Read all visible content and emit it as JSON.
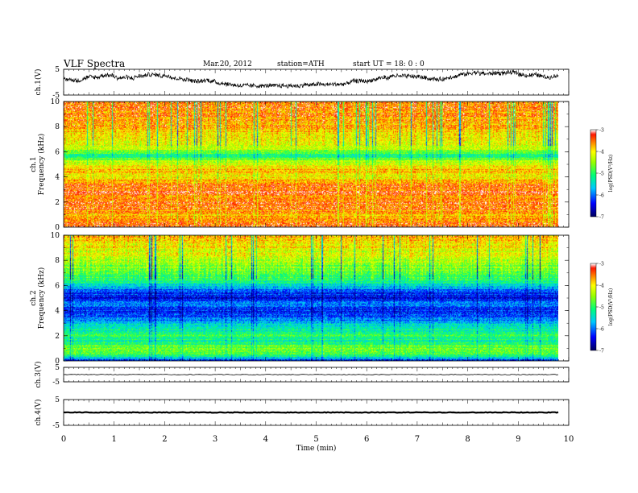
{
  "header": {
    "title": "VLF  Spectra",
    "date": "Mar.20, 2012",
    "station": "station=ATH",
    "start": "start  UT  =    18: 0  : 0"
  },
  "chart_data": [
    {
      "type": "line",
      "ylabel": "ch.1(V)",
      "ylim": [
        -5,
        5
      ],
      "y_ticks": [
        "5",
        "-5"
      ],
      "description_values": "noisy waveform around -1 to 3 V"
    },
    {
      "type": "heatmap",
      "ylabel": "ch.1\nFrequency  (kHz)",
      "ylabel_lines": [
        "ch.1",
        "Frequency  (kHz)"
      ],
      "ylim": [
        0,
        10
      ],
      "y_ticks": [
        "0",
        "2",
        "4",
        "6",
        "8",
        "10"
      ],
      "colorbar": {
        "label": "log(PSD(V²/Hz)",
        "ticks": [
          "-3",
          "-4",
          "-5",
          "-6",
          "-7"
        ],
        "range": [
          -7,
          -3
        ]
      },
      "intensity_profile_khz": [
        [
          0.0,
          -3.4
        ],
        [
          0.3,
          -3.3
        ],
        [
          0.8,
          -3.8
        ],
        [
          1.2,
          -3.6
        ],
        [
          1.8,
          -3.4
        ],
        [
          2.3,
          -3.7
        ],
        [
          2.8,
          -3.3
        ],
        [
          3.4,
          -3.6
        ],
        [
          4.0,
          -4.0
        ],
        [
          4.6,
          -3.8
        ],
        [
          5.2,
          -4.3
        ],
        [
          5.7,
          -5.2
        ],
        [
          6.3,
          -4.2
        ],
        [
          7.0,
          -4.0
        ],
        [
          8.0,
          -3.8
        ],
        [
          9.0,
          -3.6
        ],
        [
          10.0,
          -3.5
        ]
      ]
    },
    {
      "type": "heatmap",
      "ylabel": "ch.2\nFrequency  (kHz)",
      "ylabel_lines": [
        "ch.2",
        "Frequency  (kHz)"
      ],
      "ylim": [
        0,
        10
      ],
      "y_ticks": [
        "0",
        "2",
        "4",
        "6",
        "8",
        "10"
      ],
      "colorbar": {
        "label": "log(PSD(V²/Hz)",
        "ticks": [
          "-3",
          "-4",
          "-5",
          "-6",
          "-7"
        ],
        "range": [
          -7,
          -3
        ]
      },
      "intensity_profile_khz": [
        [
          0.0,
          -6.3
        ],
        [
          0.5,
          -4.8
        ],
        [
          1.0,
          -4.6
        ],
        [
          1.5,
          -5.2
        ],
        [
          2.0,
          -4.9
        ],
        [
          2.5,
          -5.3
        ],
        [
          3.0,
          -5.6
        ],
        [
          3.5,
          -6.1
        ],
        [
          4.0,
          -6.3
        ],
        [
          4.5,
          -6.0
        ],
        [
          5.0,
          -6.4
        ],
        [
          5.5,
          -6.2
        ],
        [
          6.0,
          -5.5
        ],
        [
          6.5,
          -5.0
        ],
        [
          7.0,
          -4.8
        ],
        [
          8.0,
          -4.4
        ],
        [
          9.0,
          -4.0
        ],
        [
          10.0,
          -3.8
        ]
      ]
    },
    {
      "type": "line",
      "ylabel": "ch.3(V)",
      "ylim": [
        -5,
        5
      ],
      "y_ticks": [
        "5",
        "-5"
      ],
      "level_v": 0
    },
    {
      "type": "line",
      "ylabel": "ch.4(V)",
      "ylim": [
        -5,
        5
      ],
      "y_ticks": [
        "5",
        "-5"
      ],
      "level_v": 0
    }
  ],
  "x_axis": {
    "label": "Time  (min)",
    "xlim": [
      0,
      10
    ],
    "ticks": [
      "0",
      "1",
      "2",
      "3",
      "4",
      "5",
      "6",
      "7",
      "8",
      "9",
      "10"
    ],
    "data_end_min": 9.8
  },
  "colors": {
    "scale": [
      "#000066",
      "#0000ff",
      "#00e5ff",
      "#00ff66",
      "#ffff00",
      "#ff8800",
      "#ff0000",
      "#ffffff"
    ]
  }
}
